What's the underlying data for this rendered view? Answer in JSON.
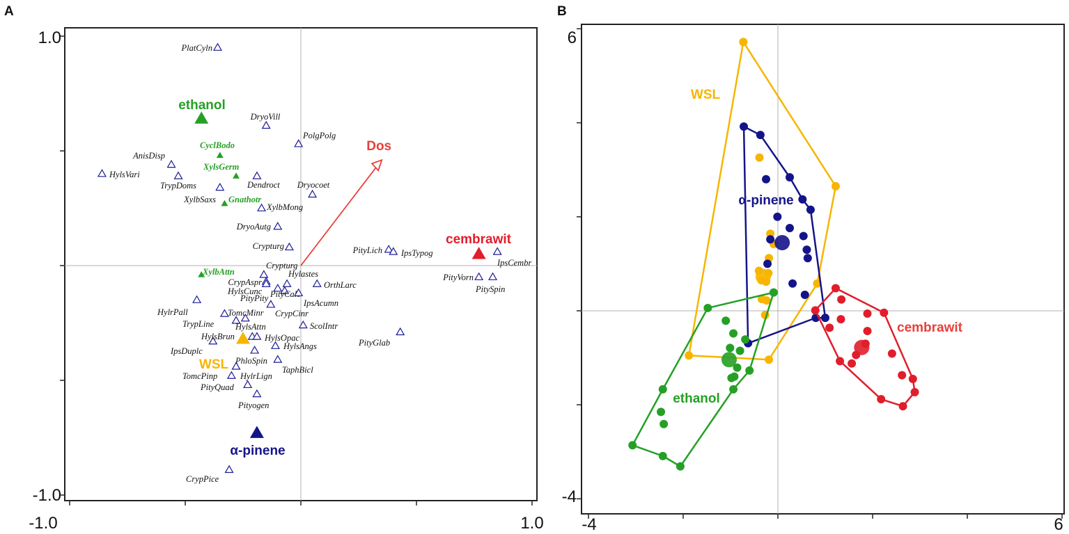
{
  "colors": {
    "alpha_pinene": "#14148a",
    "ethanol": "#25a025",
    "wsl": "#f7b500",
    "cembrawit": "#e01e2b",
    "dos": "#e8403a",
    "species": "#1c1c96",
    "grid": "#b0b0b0"
  },
  "chart_data": [
    {
      "panel": "A",
      "type": "scatter",
      "title": "",
      "xlabel": "",
      "ylabel": "",
      "xlim": [
        -1.0,
        1.0
      ],
      "ylim": [
        -1.0,
        1.0
      ],
      "x_tick_labels": [
        "-1.0",
        "1.0"
      ],
      "y_tick_labels": [
        "1.0",
        "-1.0"
      ],
      "species": [
        {
          "name": "PlatCyln",
          "x": -0.36,
          "y": 0.95
        },
        {
          "name": "DryoVill",
          "x": -0.15,
          "y": 0.61
        },
        {
          "name": "PolgPolg",
          "x": -0.01,
          "y": 0.53
        },
        {
          "name": "HylsVari",
          "x": -0.86,
          "y": 0.4
        },
        {
          "name": "AnisDisp",
          "x": -0.56,
          "y": 0.44
        },
        {
          "name": "TrypDoms",
          "x": -0.53,
          "y": 0.39
        },
        {
          "name": "XylbSaxs",
          "x": -0.35,
          "y": 0.34
        },
        {
          "name": "Dendroct",
          "x": -0.19,
          "y": 0.39
        },
        {
          "name": "Dryocoet",
          "x": 0.05,
          "y": 0.31
        },
        {
          "name": "XylbMong",
          "x": -0.17,
          "y": 0.25
        },
        {
          "name": "DryoAutg",
          "x": -0.1,
          "y": 0.17
        },
        {
          "name": "Crypturg",
          "x": -0.05,
          "y": 0.08
        },
        {
          "name": "Crypturg",
          "x": -0.16,
          "y": -0.04
        },
        {
          "name": "PityLich",
          "x": 0.38,
          "y": 0.07
        },
        {
          "name": "IpsTypog",
          "x": 0.4,
          "y": 0.06
        },
        {
          "name": "IpsCembr",
          "x": 0.85,
          "y": 0.06
        },
        {
          "name": "PityVorn",
          "x": 0.77,
          "y": -0.05
        },
        {
          "name": "PitySpin",
          "x": 0.83,
          "y": -0.05
        },
        {
          "name": "CrypAspr",
          "x": -0.15,
          "y": -0.07
        },
        {
          "name": "HylsCunc",
          "x": -0.15,
          "y": -0.08
        },
        {
          "name": "PityCalc",
          "x": -0.07,
          "y": -0.11
        },
        {
          "name": "Hylastes",
          "x": -0.06,
          "y": -0.08
        },
        {
          "name": "OrthLarc",
          "x": 0.07,
          "y": -0.08
        },
        {
          "name": "IpsAcumn",
          "x": -0.01,
          "y": -0.12
        },
        {
          "name": "PityPity",
          "x": -0.13,
          "y": -0.17
        },
        {
          "name": "CrypCinr",
          "x": -0.1,
          "y": -0.1
        },
        {
          "name": "HylrPall",
          "x": -0.45,
          "y": -0.15
        },
        {
          "name": "TomcMinr",
          "x": -0.33,
          "y": -0.21
        },
        {
          "name": "TrypLine",
          "x": -0.28,
          "y": -0.24
        },
        {
          "name": "HylsAttn",
          "x": -0.24,
          "y": -0.23
        },
        {
          "name": "ScolIntr",
          "x": 0.01,
          "y": -0.26
        },
        {
          "name": "HylsBrun",
          "x": -0.38,
          "y": -0.33
        },
        {
          "name": "HylsOpac",
          "x": -0.21,
          "y": -0.31
        },
        {
          "name": "HylsAngs",
          "x": -0.11,
          "y": -0.35
        },
        {
          "name": "IpsDuplc",
          "x": -0.19,
          "y": -0.31
        },
        {
          "name": "PhloSpin",
          "x": -0.2,
          "y": -0.37
        },
        {
          "name": "TaphBicl",
          "x": -0.1,
          "y": -0.41
        },
        {
          "name": "HylrLign",
          "x": -0.28,
          "y": -0.44
        },
        {
          "name": "TomcPinp",
          "x": -0.3,
          "y": -0.48
        },
        {
          "name": "PityQuad",
          "x": -0.23,
          "y": -0.52
        },
        {
          "name": "Pityogen",
          "x": -0.19,
          "y": -0.56
        },
        {
          "name": "PityGlab",
          "x": 0.43,
          "y": -0.29
        },
        {
          "name": "CrypPice",
          "x": -0.31,
          "y": -0.89
        }
      ],
      "ethanol_species": [
        {
          "name": "CyclBodo",
          "x": -0.35,
          "y": 0.48
        },
        {
          "name": "XylsGerm",
          "x": -0.28,
          "y": 0.39
        },
        {
          "name": "Gnathotr",
          "x": -0.33,
          "y": 0.27
        },
        {
          "name": "XylbAttn",
          "x": -0.43,
          "y": -0.04
        }
      ],
      "treatments": [
        {
          "name": "ethanol",
          "x": -0.43,
          "y": 0.64,
          "color_key": "ethanol"
        },
        {
          "name": "cembrawit",
          "x": 0.77,
          "y": 0.05,
          "color_key": "cembrawit"
        },
        {
          "name": "WSL",
          "x": -0.25,
          "y": -0.32,
          "color_key": "wsl"
        },
        {
          "name": "α-pinene",
          "x": -0.19,
          "y": -0.73,
          "color_key": "alpha_pinene"
        }
      ],
      "vector": {
        "name": "Dos",
        "x": 0.35,
        "y": 0.46
      }
    },
    {
      "panel": "B",
      "type": "scatter",
      "title": "",
      "xlim": [
        -4,
        6
      ],
      "ylim": [
        -4,
        6
      ],
      "x_ticks": [
        -4,
        -2,
        0,
        2,
        4,
        6
      ],
      "y_ticks": [
        -4,
        -2,
        0,
        2,
        4,
        6
      ],
      "x_tick_labels": [
        "-4",
        "6"
      ],
      "y_tick_labels": [
        "6",
        "-4"
      ],
      "groups": [
        {
          "name": "WSL",
          "color_key": "wsl",
          "centroid": [
            -0.31,
            0.73
          ],
          "hull": [
            [
              -0.73,
              5.72
            ],
            [
              1.22,
              2.65
            ],
            [
              0.83,
              0.58
            ],
            [
              -0.19,
              -1.04
            ],
            [
              -1.88,
              -0.95
            ]
          ],
          "points": [
            [
              -0.39,
              3.26
            ],
            [
              -0.16,
              1.64
            ],
            [
              -0.09,
              1.42
            ],
            [
              -0.19,
              1.12
            ],
            [
              -0.4,
              0.85
            ],
            [
              -0.2,
              0.8
            ],
            [
              -0.35,
              0.65
            ],
            [
              -0.25,
              0.62
            ],
            [
              -0.34,
              0.25
            ],
            [
              -0.24,
              0.22
            ],
            [
              -0.27,
              -0.09
            ]
          ]
        },
        {
          "name": "α-pinene",
          "color_key": "alpha_pinene",
          "centroid": [
            0.09,
            1.45
          ],
          "hull": [
            [
              -0.72,
              3.92
            ],
            [
              -0.37,
              3.74
            ],
            [
              0.25,
              2.84
            ],
            [
              0.52,
              2.37
            ],
            [
              0.69,
              2.15
            ],
            [
              1.0,
              -0.15
            ],
            [
              0.8,
              -0.15
            ],
            [
              -0.63,
              -0.69
            ]
          ],
          "points": [
            [
              -0.25,
              2.8
            ],
            [
              -0.01,
              2.0
            ],
            [
              0.25,
              1.76
            ],
            [
              0.54,
              1.59
            ],
            [
              0.61,
              1.3
            ],
            [
              0.63,
              1.12
            ],
            [
              -0.16,
              1.52
            ],
            [
              -0.22,
              1.0
            ],
            [
              0.31,
              0.58
            ],
            [
              0.57,
              0.34
            ]
          ]
        },
        {
          "name": "ethanol",
          "color_key": "ethanol",
          "centroid": [
            -1.03,
            -1.04
          ],
          "hull": [
            [
              -0.09,
              0.39
            ],
            [
              -0.6,
              -1.27
            ],
            [
              -0.94,
              -1.67
            ],
            [
              -2.06,
              -3.31
            ],
            [
              -2.43,
              -3.09
            ],
            [
              -3.07,
              -2.86
            ],
            [
              -2.43,
              -1.67
            ],
            [
              -1.48,
              0.06
            ]
          ],
          "points": [
            [
              -1.1,
              -0.21
            ],
            [
              -0.94,
              -0.48
            ],
            [
              -0.69,
              -0.61
            ],
            [
              -1.01,
              -0.79
            ],
            [
              -0.8,
              -0.85
            ],
            [
              -0.86,
              -1.21
            ],
            [
              -0.98,
              -1.43
            ],
            [
              -0.92,
              -1.4
            ],
            [
              -2.47,
              -2.15
            ],
            [
              -2.41,
              -2.41
            ]
          ]
        },
        {
          "name": "cembrawit",
          "color_key": "cembrawit",
          "centroid": [
            1.77,
            -0.78
          ],
          "hull": [
            [
              1.22,
              0.48
            ],
            [
              2.24,
              -0.04
            ],
            [
              2.85,
              -1.45
            ],
            [
              2.89,
              -1.73
            ],
            [
              2.64,
              -2.03
            ],
            [
              2.18,
              -1.88
            ],
            [
              1.31,
              -1.07
            ],
            [
              0.79,
              0.01
            ]
          ],
          "points": [
            [
              1.34,
              0.24
            ],
            [
              1.33,
              -0.18
            ],
            [
              1.09,
              -0.36
            ],
            [
              1.89,
              -0.06
            ],
            [
              1.89,
              -0.43
            ],
            [
              1.65,
              -0.94
            ],
            [
              1.56,
              -1.12
            ],
            [
              2.41,
              -0.91
            ],
            [
              2.62,
              -1.37
            ],
            [
              1.85,
              -0.7
            ]
          ]
        }
      ]
    }
  ],
  "panel_labels": {
    "a": "A",
    "b": "B"
  }
}
